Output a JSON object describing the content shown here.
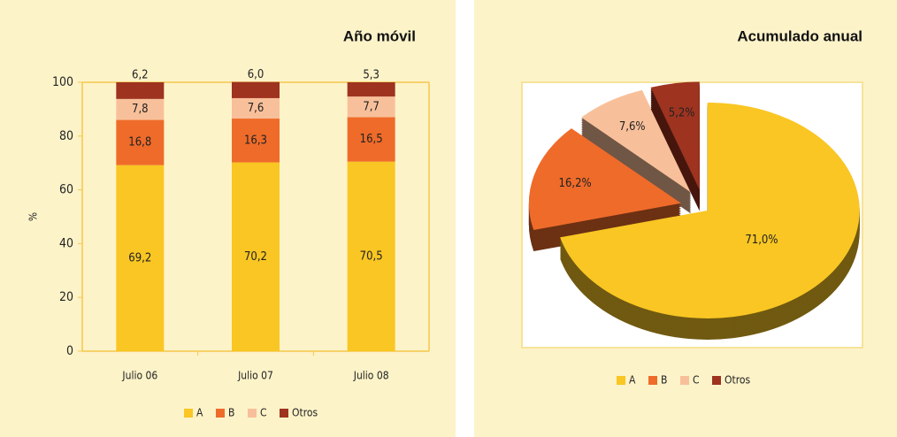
{
  "chart_data": [
    {
      "type": "bar",
      "title": "Año móvil",
      "y_label": "%",
      "categories": [
        "Julio 06",
        "Julio 07",
        "Julio 08"
      ],
      "series": [
        {
          "name": "A",
          "color": "#f9c623",
          "values": [
            69.2,
            70.2,
            70.5
          ],
          "value_labels": [
            "69,2",
            "70,2",
            "70,5"
          ]
        },
        {
          "name": "B",
          "color": "#ef6b2a",
          "values": [
            16.8,
            16.3,
            16.5
          ],
          "value_labels": [
            "16,8",
            "16,3",
            "16,5"
          ]
        },
        {
          "name": "C",
          "color": "#f8c09a",
          "values": [
            7.8,
            7.6,
            7.7
          ],
          "value_labels": [
            "7,8",
            "7,6",
            "7,7"
          ]
        },
        {
          "name": "Otros",
          "color": "#9e3320",
          "values": [
            6.2,
            6.0,
            5.3
          ],
          "value_labels": [
            "6,2",
            "6,0",
            "5,3"
          ]
        }
      ],
      "ylim": [
        0,
        100
      ],
      "yticks": [
        0,
        20,
        40,
        60,
        80,
        100
      ],
      "stacked": true
    },
    {
      "type": "pie",
      "title": "Acumulado anual",
      "categories": [
        "A",
        "B",
        "C",
        "Otros"
      ],
      "colors": [
        "#f9c623",
        "#ef6b2a",
        "#f8c09a",
        "#9e3320"
      ],
      "values": [
        71.0,
        16.2,
        7.6,
        5.2
      ],
      "value_labels": [
        "71,0%",
        "16,2%",
        "7,6%",
        "5,2%"
      ]
    }
  ]
}
